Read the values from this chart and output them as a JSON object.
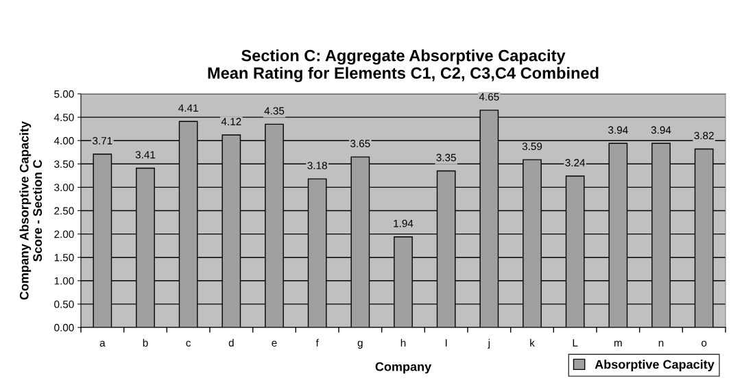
{
  "chart_data": {
    "type": "bar",
    "title": "Section C: Aggregate Absorptive Capacity\nMean Rating for Elements C1, C2, C3,C4 Combined",
    "xlabel": "Company",
    "ylabel": "Company Absorptive Capacity\nScore - Section C",
    "categories": [
      "a",
      "b",
      "c",
      "d",
      "e",
      "f",
      "g",
      "h",
      "I",
      "j",
      "k",
      "L",
      "m",
      "n",
      "o"
    ],
    "series": [
      {
        "name": "Absorptive Capacity",
        "color": "#a0a0a0",
        "values": [
          3.71,
          3.41,
          4.41,
          4.12,
          4.35,
          3.18,
          3.65,
          1.94,
          3.35,
          4.65,
          3.59,
          3.24,
          3.94,
          3.94,
          3.82
        ]
      }
    ],
    "ylim": [
      0,
      5
    ],
    "yticks": [
      {
        "value": 0,
        "label": "0.00"
      },
      {
        "value": 0.5,
        "label": "0.50"
      },
      {
        "value": 1,
        "label": "1.00"
      },
      {
        "value": 1.5,
        "label": "1.50"
      },
      {
        "value": 2,
        "label": "2.00"
      },
      {
        "value": 2.5,
        "label": "2.50"
      },
      {
        "value": 3,
        "label": "3.00"
      },
      {
        "value": 3.5,
        "label": "3.50"
      },
      {
        "value": 4,
        "label": "4.00"
      },
      {
        "value": 4.5,
        "label": "4.50"
      },
      {
        "value": 5,
        "label": "5.00"
      }
    ],
    "grid": "y",
    "legend": "bottom right",
    "data_labels": true
  }
}
